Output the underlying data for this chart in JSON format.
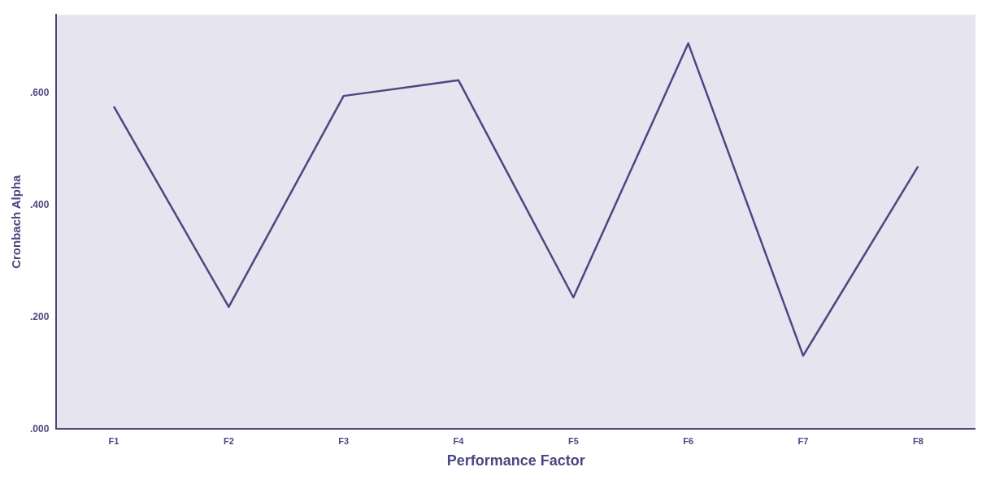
{
  "chart_data": {
    "type": "line",
    "xlabel": "Performance Factor",
    "ylabel": "Cronbach Alpha",
    "categories": [
      "F1",
      "F2",
      "F3",
      "F4",
      "F5",
      "F6",
      "F7",
      "F8"
    ],
    "series": [
      {
        "color": "#4a4880",
        "values": [
          0.576,
          0.218,
          0.595,
          0.623,
          0.235,
          0.689,
          0.131,
          0.469
        ]
      }
    ],
    "ylim": [
      0,
      0.74
    ],
    "yticks": [
      {
        "value": 0,
        "label": ".000"
      },
      {
        "value": 0.2,
        "label": ".200"
      },
      {
        "value": 0.4,
        "label": ".400"
      },
      {
        "value": 0.6,
        "label": ".600"
      }
    ],
    "grid": false,
    "legend": false,
    "marker": "none",
    "line_style": "solid"
  }
}
